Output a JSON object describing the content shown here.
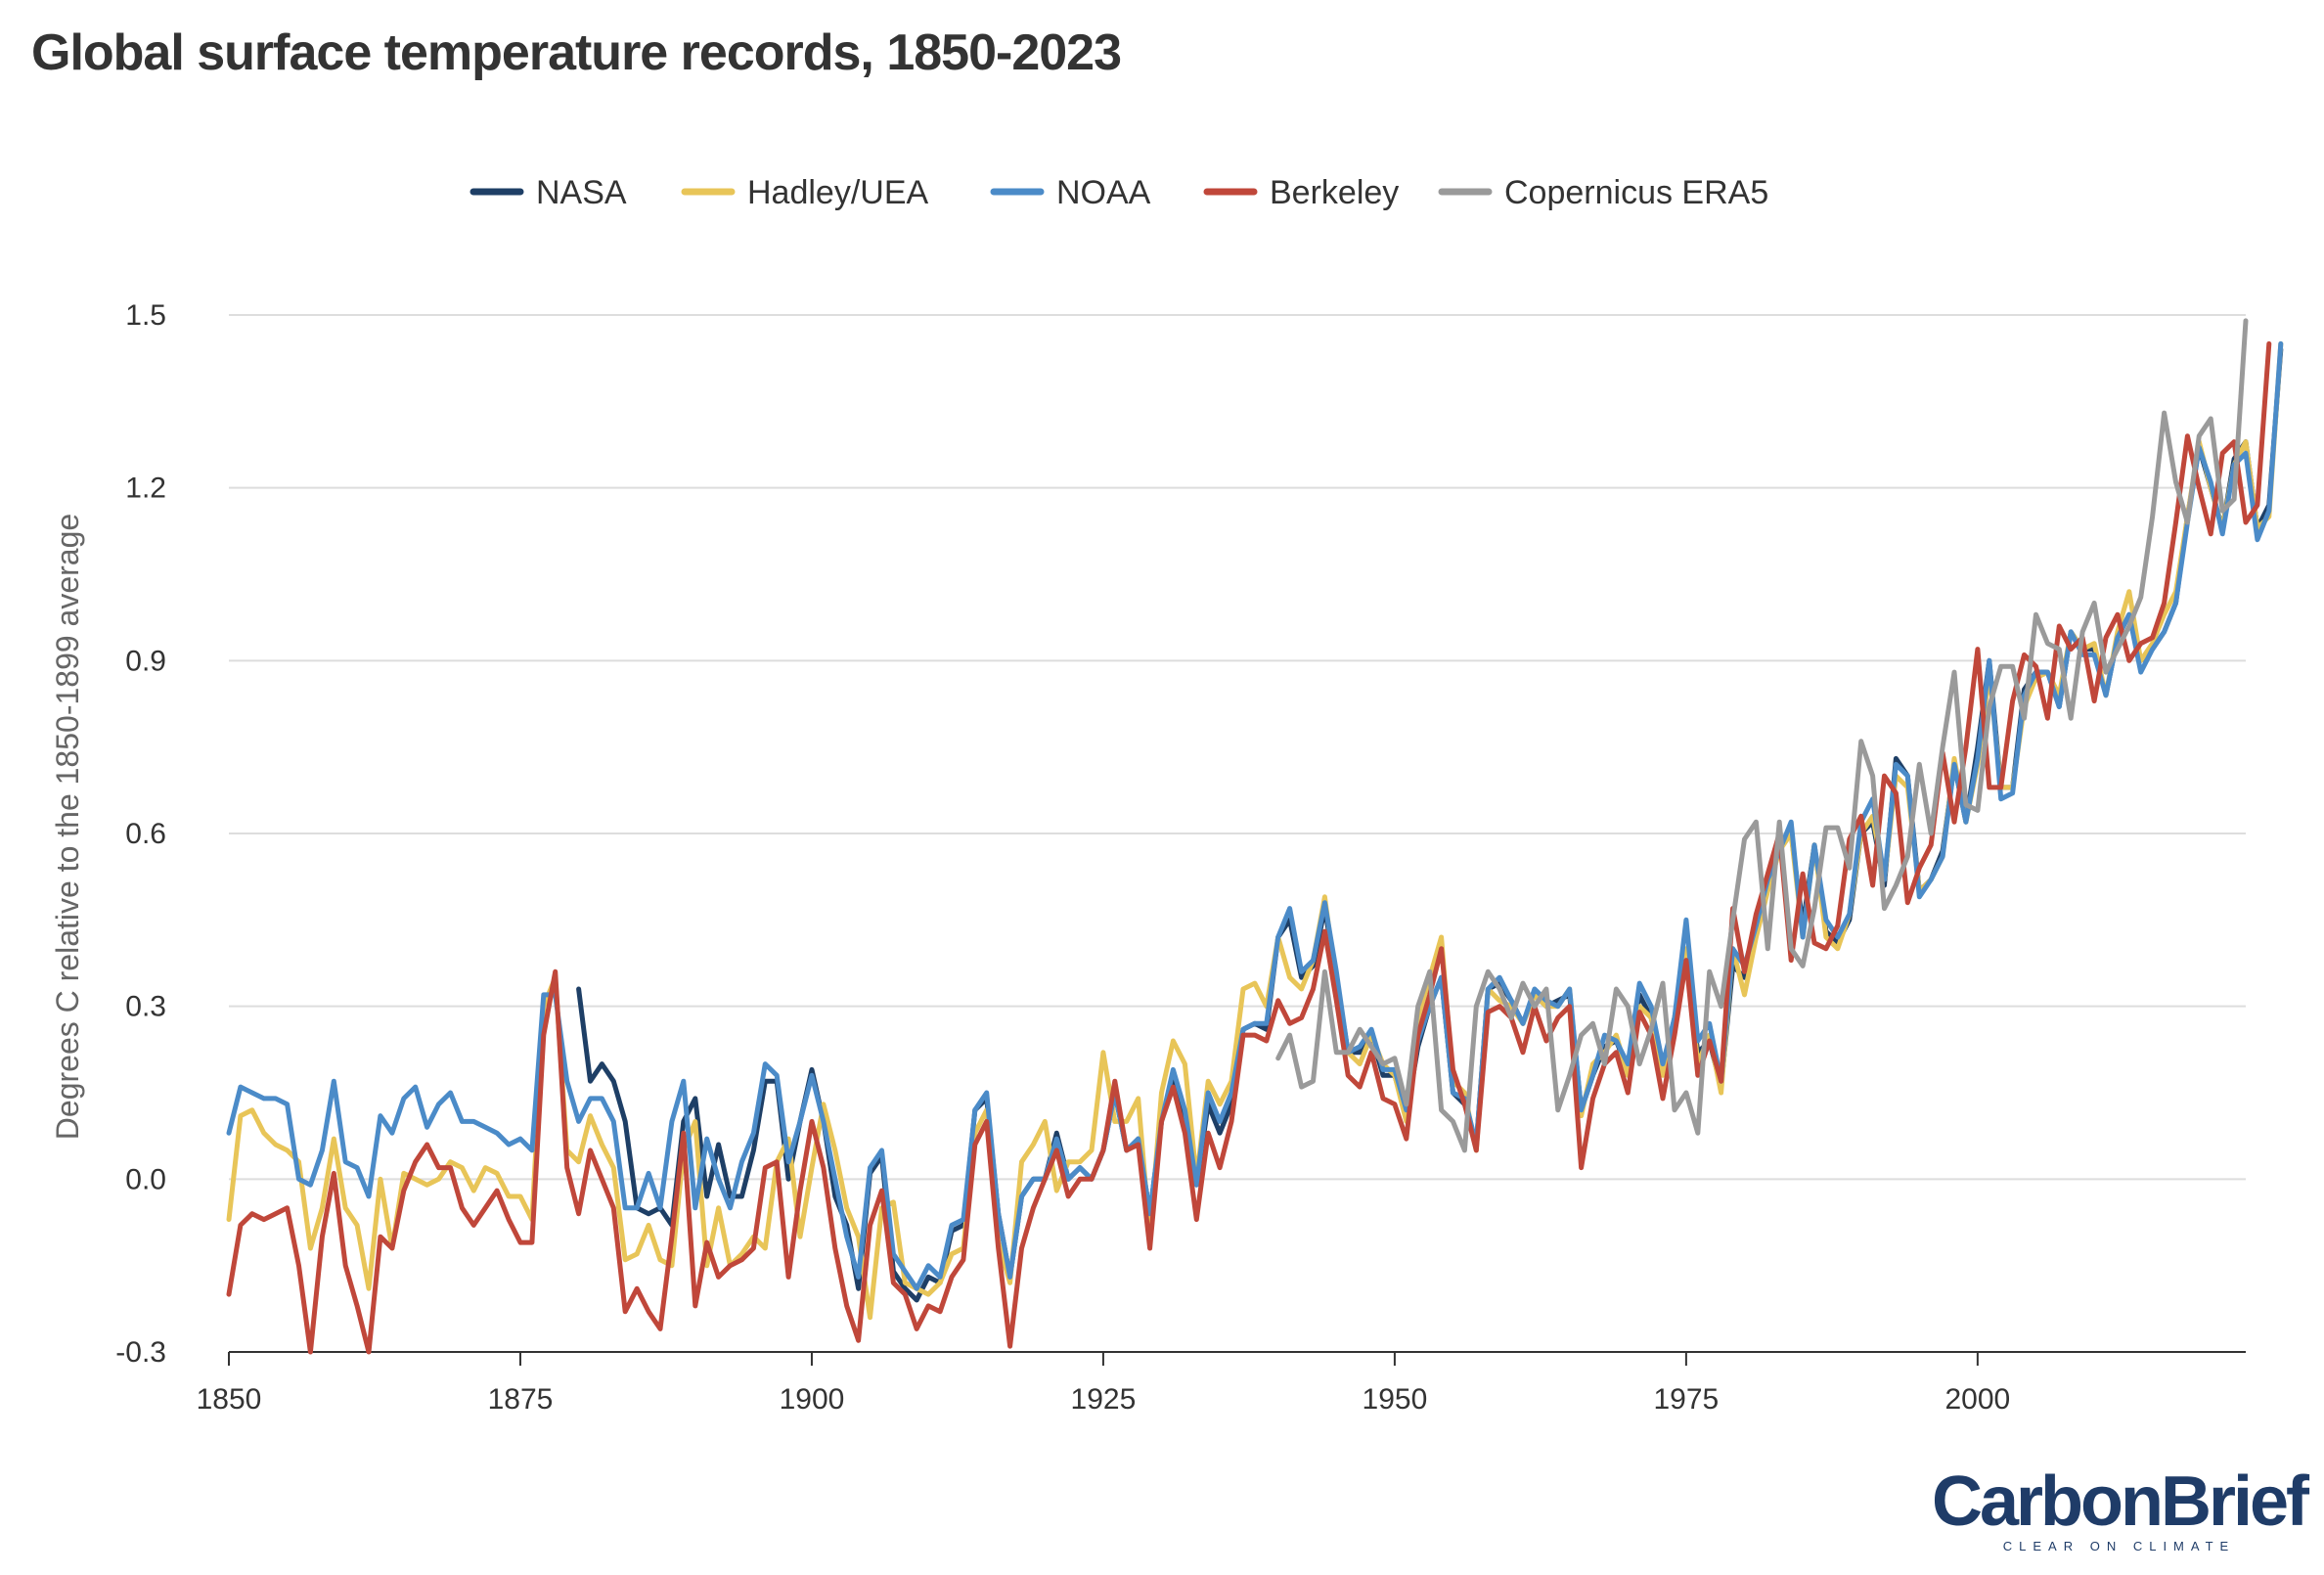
{
  "chart_data": {
    "type": "line",
    "title": "Global surface temperature records, 1850-2023",
    "xlabel": "",
    "ylabel": "Degrees C relative to the 1850-1899 average",
    "xlim": [
      1850,
      2023
    ],
    "ylim": [
      -0.3,
      1.5
    ],
    "x_ticks": [
      1850,
      1875,
      1900,
      1925,
      1950,
      1975,
      2000
    ],
    "y_ticks": [
      -0.3,
      0.0,
      0.3,
      0.6,
      0.9,
      1.2,
      1.5
    ],
    "y_tick_labels": [
      "-0.3",
      "0.0",
      "0.3",
      "0.6",
      "0.9",
      "1.2",
      "1.5"
    ],
    "grid": "horizontal",
    "legend_position": "top-center",
    "series": [
      {
        "name": "NASA",
        "color": "#1e3f66",
        "start": 1880,
        "values": [
          0.33,
          0.17,
          0.2,
          0.17,
          0.1,
          -0.05,
          -0.06,
          -0.05,
          -0.08,
          0.1,
          0.14,
          -0.03,
          0.06,
          -0.03,
          -0.03,
          0.05,
          0.17,
          0.17,
          0.0,
          0.1,
          0.19,
          0.1,
          -0.03,
          -0.08,
          -0.19,
          0.01,
          0.04,
          -0.16,
          -0.19,
          -0.21,
          -0.17,
          -0.18,
          -0.09,
          -0.08,
          0.12,
          0.14,
          -0.06,
          -0.17,
          -0.03,
          0.0,
          0.0,
          0.08,
          0.0,
          0.02,
          0.0,
          0.05,
          0.15,
          0.05,
          0.07,
          -0.06,
          0.1,
          0.17,
          0.11,
          -0.01,
          0.13,
          0.08,
          0.13,
          0.26,
          0.27,
          0.26,
          0.42,
          0.45,
          0.35,
          0.37,
          0.47,
          0.35,
          0.22,
          0.22,
          0.25,
          0.18,
          0.18,
          0.11,
          0.23,
          0.3,
          0.35,
          0.15,
          0.13,
          0.06,
          0.33,
          0.34,
          0.31,
          0.27,
          0.32,
          0.3,
          0.31,
          0.32,
          0.12,
          0.18,
          0.23,
          0.24,
          0.19,
          0.32,
          0.28,
          0.19,
          0.28,
          0.38,
          0.22,
          0.24,
          0.16,
          0.37,
          0.35,
          0.43,
          0.51,
          0.58,
          0.6,
          0.44,
          0.58,
          0.43,
          0.41,
          0.45,
          0.6,
          0.62,
          0.51,
          0.73,
          0.7,
          0.5,
          0.52,
          0.57,
          0.72,
          0.62,
          0.75,
          0.9,
          0.68,
          0.68,
          0.85,
          0.88,
          0.88,
          0.82,
          0.95,
          0.92,
          0.92,
          0.84,
          0.94,
          0.98,
          0.9,
          0.92,
          0.95,
          1.0,
          1.15,
          1.27,
          1.2,
          1.13,
          1.25,
          1.28,
          1.13,
          1.17,
          1.44
        ]
      },
      {
        "name": "Hadley/UEA",
        "color": "#e8c558",
        "start": 1850,
        "values": [
          -0.07,
          0.11,
          0.12,
          0.08,
          0.06,
          0.05,
          0.03,
          -0.12,
          -0.05,
          0.07,
          -0.05,
          -0.08,
          -0.19,
          0.0,
          -0.12,
          0.01,
          0.0,
          -0.01,
          0.0,
          0.03,
          0.02,
          -0.02,
          0.02,
          0.01,
          -0.03,
          -0.03,
          -0.07,
          0.3,
          0.35,
          0.05,
          0.03,
          0.11,
          0.06,
          0.02,
          -0.14,
          -0.13,
          -0.08,
          -0.14,
          -0.15,
          0.05,
          0.1,
          -0.15,
          -0.05,
          -0.15,
          -0.13,
          -0.1,
          -0.12,
          0.03,
          0.07,
          -0.1,
          0.02,
          0.13,
          0.05,
          -0.05,
          -0.1,
          -0.24,
          -0.05,
          -0.04,
          -0.18,
          -0.19,
          -0.2,
          -0.18,
          -0.13,
          -0.12,
          0.08,
          0.12,
          -0.11,
          -0.18,
          0.03,
          0.06,
          0.1,
          -0.02,
          0.03,
          0.03,
          0.05,
          0.22,
          0.1,
          0.1,
          0.14,
          -0.1,
          0.15,
          0.24,
          0.2,
          0.0,
          0.17,
          0.13,
          0.17,
          0.33,
          0.34,
          0.3,
          0.42,
          0.35,
          0.33,
          0.38,
          0.49,
          0.34,
          0.22,
          0.2,
          0.25,
          0.2,
          0.18,
          0.1,
          0.28,
          0.35,
          0.42,
          0.17,
          0.15,
          0.05,
          0.33,
          0.31,
          0.3,
          0.27,
          0.32,
          0.3,
          0.3,
          0.33,
          0.11,
          0.2,
          0.22,
          0.25,
          0.18,
          0.3,
          0.28,
          0.18,
          0.28,
          0.4,
          0.2,
          0.25,
          0.15,
          0.4,
          0.32,
          0.42,
          0.5,
          0.57,
          0.6,
          0.42,
          0.58,
          0.42,
          0.4,
          0.46,
          0.6,
          0.63,
          0.52,
          0.7,
          0.68,
          0.5,
          0.52,
          0.56,
          0.73,
          0.62,
          0.72,
          0.88,
          0.68,
          0.68,
          0.82,
          0.87,
          0.88,
          0.84,
          0.95,
          0.92,
          0.93,
          0.84,
          0.95,
          1.02,
          0.9,
          0.93,
          0.98,
          1.02,
          1.15,
          1.28,
          1.2,
          1.13,
          1.24,
          1.28,
          1.13,
          1.15,
          1.45
        ]
      },
      {
        "name": "NOAA",
        "color": "#4b8bc8",
        "start": 1850,
        "values": [
          0.08,
          0.16,
          0.15,
          0.14,
          0.14,
          0.13,
          0.0,
          -0.01,
          0.05,
          0.17,
          0.03,
          0.02,
          -0.03,
          0.11,
          0.08,
          0.14,
          0.16,
          0.09,
          0.13,
          0.15,
          0.1,
          0.1,
          0.09,
          0.08,
          0.06,
          0.07,
          0.05,
          0.32,
          0.32,
          0.17,
          0.1,
          0.14,
          0.14,
          0.1,
          -0.05,
          -0.05,
          0.01,
          -0.05,
          0.1,
          0.17,
          -0.05,
          0.07,
          0.0,
          -0.05,
          0.03,
          0.08,
          0.2,
          0.18,
          0.03,
          0.1,
          0.18,
          0.1,
          0.0,
          -0.1,
          -0.17,
          0.02,
          0.05,
          -0.13,
          -0.16,
          -0.19,
          -0.15,
          -0.17,
          -0.08,
          -0.07,
          0.12,
          0.15,
          -0.06,
          -0.17,
          -0.03,
          0.0,
          0.0,
          0.07,
          0.0,
          0.02,
          0.0,
          0.05,
          0.15,
          0.05,
          0.07,
          -0.06,
          0.1,
          0.19,
          0.12,
          -0.01,
          0.15,
          0.1,
          0.15,
          0.26,
          0.27,
          0.27,
          0.42,
          0.47,
          0.36,
          0.38,
          0.48,
          0.36,
          0.22,
          0.23,
          0.26,
          0.19,
          0.19,
          0.12,
          0.24,
          0.3,
          0.35,
          0.15,
          0.14,
          0.06,
          0.33,
          0.35,
          0.31,
          0.27,
          0.33,
          0.31,
          0.3,
          0.33,
          0.12,
          0.18,
          0.25,
          0.24,
          0.2,
          0.34,
          0.3,
          0.2,
          0.28,
          0.45,
          0.24,
          0.27,
          0.17,
          0.4,
          0.37,
          0.44,
          0.52,
          0.57,
          0.62,
          0.42,
          0.58,
          0.45,
          0.42,
          0.46,
          0.62,
          0.66,
          0.52,
          0.72,
          0.7,
          0.49,
          0.52,
          0.56,
          0.72,
          0.62,
          0.73,
          0.9,
          0.66,
          0.67,
          0.84,
          0.88,
          0.88,
          0.82,
          0.95,
          0.91,
          0.91,
          0.84,
          0.94,
          0.98,
          0.88,
          0.92,
          0.95,
          1.0,
          1.14,
          1.27,
          1.21,
          1.12,
          1.24,
          1.26,
          1.11,
          1.16,
          1.45
        ]
      },
      {
        "name": "Berkeley",
        "color": "#c0473a",
        "start": 1850,
        "values": [
          -0.2,
          -0.08,
          -0.06,
          -0.07,
          -0.06,
          -0.05,
          -0.15,
          -0.3,
          -0.1,
          0.01,
          -0.15,
          -0.22,
          -0.3,
          -0.1,
          -0.12,
          -0.02,
          0.03,
          0.06,
          0.02,
          0.02,
          -0.05,
          -0.08,
          -0.05,
          -0.02,
          -0.07,
          -0.11,
          -0.11,
          0.25,
          0.36,
          0.02,
          -0.06,
          0.05,
          0.0,
          -0.05,
          -0.23,
          -0.19,
          -0.23,
          -0.26,
          -0.1,
          0.08,
          -0.22,
          -0.11,
          -0.17,
          -0.15,
          -0.14,
          -0.12,
          0.02,
          0.03,
          -0.17,
          -0.02,
          0.1,
          0.02,
          -0.12,
          -0.22,
          -0.28,
          -0.08,
          -0.02,
          -0.18,
          -0.2,
          -0.26,
          -0.22,
          -0.23,
          -0.17,
          -0.14,
          0.06,
          0.1,
          -0.12,
          -0.29,
          -0.12,
          -0.05,
          0.0,
          0.05,
          -0.03,
          0.0,
          0.0,
          0.05,
          0.17,
          0.05,
          0.06,
          -0.12,
          0.1,
          0.16,
          0.08,
          -0.07,
          0.08,
          0.02,
          0.1,
          0.25,
          0.25,
          0.24,
          0.31,
          0.27,
          0.28,
          0.33,
          0.43,
          0.31,
          0.18,
          0.16,
          0.22,
          0.14,
          0.13,
          0.07,
          0.25,
          0.32,
          0.4,
          0.19,
          0.13,
          0.05,
          0.29,
          0.3,
          0.28,
          0.22,
          0.3,
          0.24,
          0.28,
          0.3,
          0.02,
          0.14,
          0.2,
          0.22,
          0.15,
          0.29,
          0.25,
          0.14,
          0.25,
          0.38,
          0.18,
          0.24,
          0.17,
          0.47,
          0.36,
          0.46,
          0.53,
          0.6,
          0.38,
          0.53,
          0.41,
          0.4,
          0.44,
          0.59,
          0.63,
          0.51,
          0.7,
          0.67,
          0.48,
          0.54,
          0.58,
          0.74,
          0.62,
          0.75,
          0.92,
          0.68,
          0.68,
          0.83,
          0.91,
          0.89,
          0.8,
          0.96,
          0.92,
          0.94,
          0.83,
          0.94,
          0.98,
          0.9,
          0.93,
          0.94,
          1.0,
          1.14,
          1.29,
          1.2,
          1.12,
          1.26,
          1.28,
          1.14,
          1.17,
          1.45
        ]
      },
      {
        "name": "Copernicus ERA5",
        "color": "#9a9a9a",
        "start": 1940,
        "values": [
          0.21,
          0.25,
          0.16,
          0.17,
          0.36,
          0.22,
          0.22,
          0.26,
          0.23,
          0.2,
          0.21,
          0.13,
          0.3,
          0.36,
          0.12,
          0.1,
          0.05,
          0.3,
          0.36,
          0.33,
          0.28,
          0.34,
          0.3,
          0.33,
          0.12,
          0.18,
          0.25,
          0.27,
          0.2,
          0.33,
          0.3,
          0.2,
          0.26,
          0.34,
          0.12,
          0.15,
          0.08,
          0.36,
          0.3,
          0.45,
          0.59,
          0.62,
          0.4,
          0.62,
          0.4,
          0.37,
          0.47,
          0.61,
          0.61,
          0.54,
          0.76,
          0.7,
          0.47,
          0.51,
          0.56,
          0.72,
          0.6,
          0.75,
          0.88,
          0.65,
          0.64,
          0.82,
          0.89,
          0.89,
          0.8,
          0.98,
          0.93,
          0.92,
          0.8,
          0.95,
          1.0,
          0.88,
          0.92,
          0.96,
          1.01,
          1.15,
          1.33,
          1.21,
          1.14,
          1.29,
          1.32,
          1.16,
          1.18,
          1.49
        ]
      }
    ]
  },
  "logo": {
    "name": "CarbonBrief",
    "tagline": "CLEAR ON CLIMATE"
  }
}
